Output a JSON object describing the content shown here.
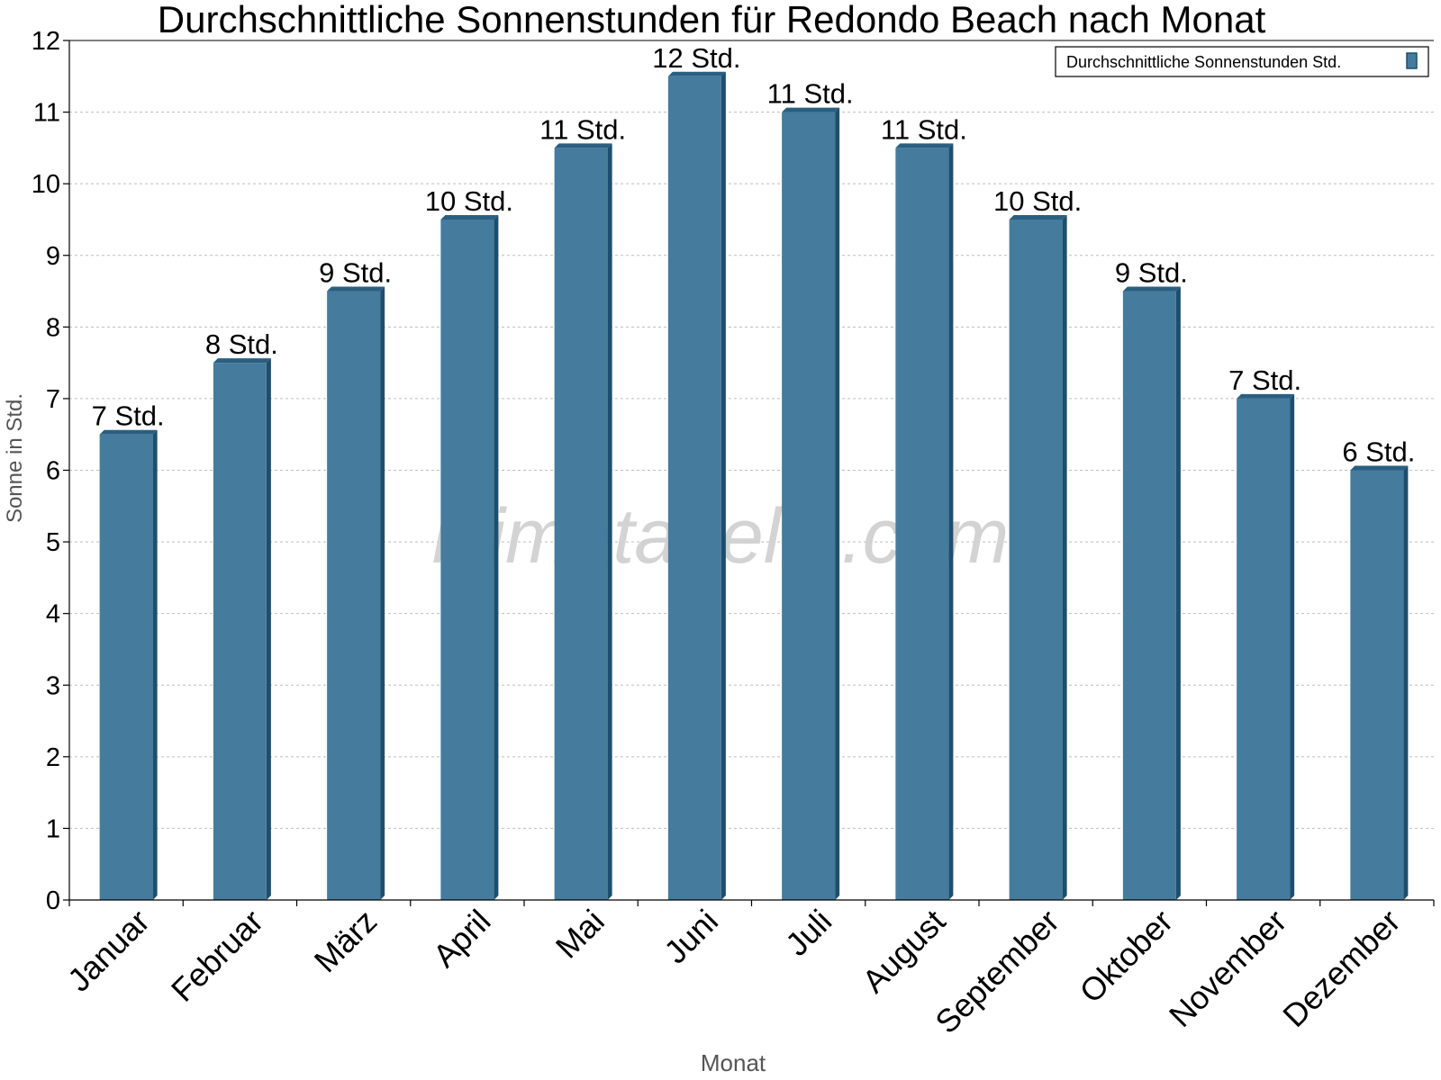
{
  "chart_data": {
    "type": "bar",
    "title": "Durchschnittliche Sonnenstunden für Redondo Beach nach Monat",
    "xlabel": "Monat",
    "ylabel": "Sonne in Std.",
    "categories": [
      "Januar",
      "Februar",
      "März",
      "April",
      "Mai",
      "Juni",
      "Juli",
      "August",
      "September",
      "Oktober",
      "November",
      "Dezember"
    ],
    "series": [
      {
        "name": "Durchschnittliche Sonnenstunden Std.",
        "values": [
          6.5,
          7.5,
          8.5,
          9.5,
          10.5,
          11.5,
          11,
          10.5,
          9.5,
          8.5,
          7,
          6
        ],
        "data_labels": [
          "7 Std.",
          "8 Std.",
          "9 Std.",
          "10 Std.",
          "11 Std.",
          "12 Std.",
          "11 Std.",
          "11 Std.",
          "10 Std.",
          "9 Std.",
          "7 Std.",
          "6 Std."
        ]
      }
    ],
    "ylim": [
      0,
      12
    ],
    "yticks": [
      "0",
      "1",
      "2",
      "3",
      "4",
      "5",
      "6",
      "7",
      "8",
      "9",
      "10",
      "11",
      "12"
    ],
    "grid": true,
    "legend_position": "top-right",
    "watermark": "klimatabelle.com",
    "colors": {
      "bar": "#457b9d",
      "bar_side": "#1d4e6e",
      "bar_top": "#2a5f80",
      "grid": "#bdbdbd",
      "axis_label": "#555555",
      "watermark": "#cfcfcf"
    }
  }
}
